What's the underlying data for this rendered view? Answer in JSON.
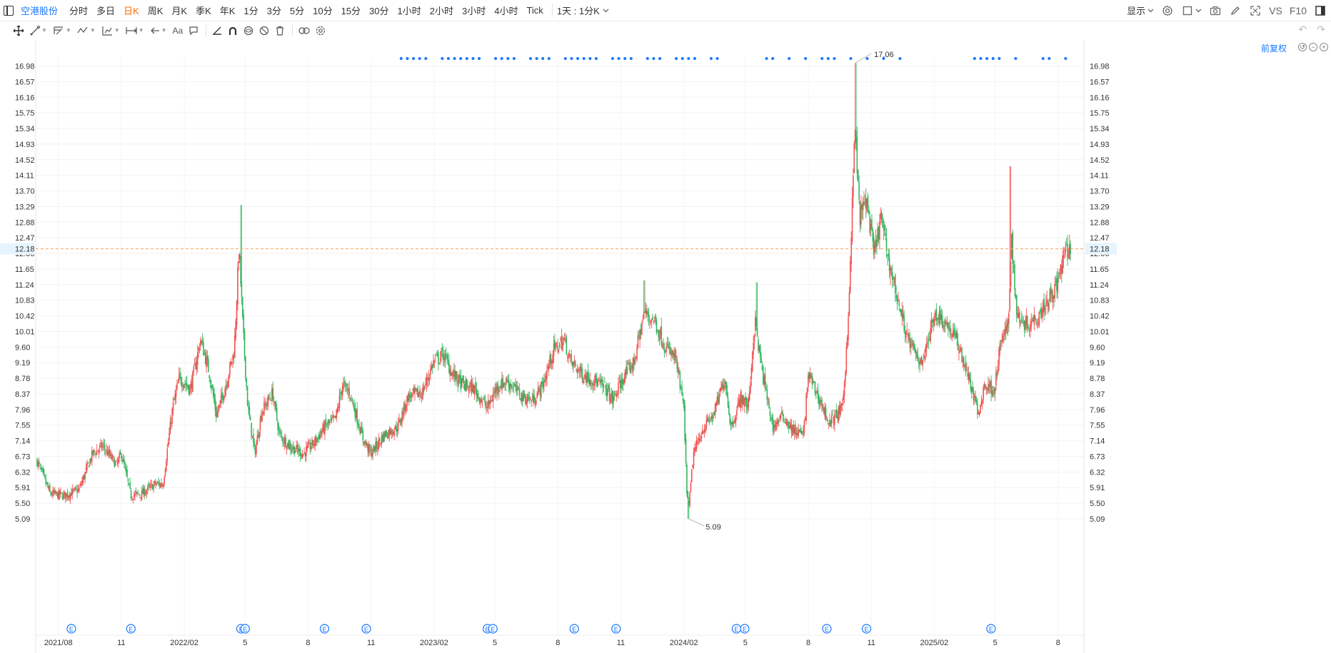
{
  "toolbar": {
    "symbol": "空港股份",
    "periods": [
      "分时",
      "多日",
      "日K",
      "周K",
      "月K",
      "季K",
      "年K",
      "1分",
      "3分",
      "5分",
      "10分",
      "15分",
      "30分",
      "1小时",
      "2小时",
      "3小时",
      "4小时",
      "Tick"
    ],
    "active_period": "日K",
    "interval_select": "1天 : 1分K",
    "display_label": "显示",
    "vs_label": "VS",
    "f10_label": "F10"
  },
  "adjust_label": "前复权",
  "current_price": "12.18",
  "colors": {
    "up": "#f14c4c",
    "down": "#2bb35a",
    "accent": "#1677ff",
    "price_line": "#f7a35c"
  },
  "icons": [
    "panel-toggle-icon",
    "gear-icon",
    "square-icon",
    "camera-icon",
    "pen-icon",
    "fullscreen-icon",
    "layout-icon",
    "move-icon",
    "line-icon",
    "trend-icon",
    "pattern-icon",
    "fib-icon",
    "measure-icon",
    "arrow-icon",
    "text-icon",
    "comment-icon",
    "angle-icon",
    "magnet-icon",
    "eye-icon",
    "hide-icon",
    "trash-icon",
    "link-icon",
    "settings-icon",
    "undo-icon",
    "redo-icon"
  ],
  "chart_data": {
    "type": "candlestick",
    "y_ticks": [
      "16.98",
      "16.57",
      "16.16",
      "15.75",
      "15.34",
      "14.93",
      "14.52",
      "14.11",
      "13.70",
      "13.29",
      "12.88",
      "12.47",
      "12.06",
      "11.65",
      "11.24",
      "10.83",
      "10.42",
      "10.01",
      "9.60",
      "9.19",
      "8.78",
      "8.37",
      "7.96",
      "7.55",
      "7.14",
      "6.73",
      "6.32",
      "5.91",
      "5.50",
      "5.09"
    ],
    "ylim": [
      4.84,
      17.46
    ],
    "x_ticks": [
      "2021/08",
      "11",
      "2022/02",
      "5",
      "8",
      "11",
      "2023/02",
      "5",
      "8",
      "11",
      "2024/02",
      "5",
      "8",
      "11",
      "2025/02",
      "5",
      "8"
    ],
    "x_range": [
      "2021/07",
      "2025/08"
    ],
    "high_annotation": {
      "label": "17.06",
      "value": 17.06,
      "date": "2024/10"
    },
    "low_annotation": {
      "label": "5.09",
      "value": 5.09,
      "date": "2024/02"
    },
    "current_price_line": 12.18,
    "close_path": [
      [
        "2021/07/01",
        6.6
      ],
      [
        "2021/07/20",
        5.75
      ],
      [
        "2021/08/10",
        5.7
      ],
      [
        "2021/08/31",
        5.85
      ],
      [
        "2021/09/20",
        6.8
      ],
      [
        "2021/10/05",
        7.0
      ],
      [
        "2021/10/25",
        6.5
      ],
      [
        "2021/11/01",
        6.8
      ],
      [
        "2021/11/15",
        5.7
      ],
      [
        "2021/12/01",
        5.75
      ],
      [
        "2021/12/20",
        6.0
      ],
      [
        "2022/01/01",
        6.0
      ],
      [
        "2022/01/05",
        6.6
      ],
      [
        "2022/01/15",
        8.0
      ],
      [
        "2022/01/25",
        8.8
      ],
      [
        "2022/02/10",
        8.5
      ],
      [
        "2022/02/25",
        9.8
      ],
      [
        "2022/03/10",
        8.9
      ],
      [
        "2022/03/20",
        7.8
      ],
      [
        "2022/04/01",
        8.5
      ],
      [
        "2022/04/15",
        9.5
      ],
      [
        "2022/04/22",
        12.2
      ],
      [
        "2022/04/28",
        10.0
      ],
      [
        "2022/05/05",
        8.0
      ],
      [
        "2022/05/15",
        6.8
      ],
      [
        "2022/05/25",
        7.9
      ],
      [
        "2022/06/10",
        8.4
      ],
      [
        "2022/06/20",
        7.3
      ],
      [
        "2022/07/05",
        7.0
      ],
      [
        "2022/07/25",
        6.8
      ],
      [
        "2022/08/10",
        7.1
      ],
      [
        "2022/08/25",
        7.5
      ],
      [
        "2022/09/10",
        7.7
      ],
      [
        "2022/09/20",
        8.6
      ],
      [
        "2022/10/01",
        8.4
      ],
      [
        "2022/10/20",
        7.2
      ],
      [
        "2022/11/01",
        6.8
      ],
      [
        "2022/11/20",
        7.3
      ],
      [
        "2022/12/10",
        7.5
      ],
      [
        "2022/12/25",
        8.3
      ],
      [
        "2023/01/15",
        8.4
      ],
      [
        "2023/01/31",
        9.2
      ],
      [
        "2023/02/15",
        9.4
      ],
      [
        "2023/02/28",
        8.9
      ],
      [
        "2023/03/15",
        8.6
      ],
      [
        "2023/04/01",
        8.5
      ],
      [
        "2023/04/20",
        8.0
      ],
      [
        "2023/05/05",
        8.6
      ],
      [
        "2023/05/20",
        8.7
      ],
      [
        "2023/06/10",
        8.3
      ],
      [
        "2023/06/25",
        8.2
      ],
      [
        "2023/07/10",
        8.6
      ],
      [
        "2023/07/25",
        9.5
      ],
      [
        "2023/08/10",
        9.8
      ],
      [
        "2023/08/20",
        9.2
      ],
      [
        "2023/09/05",
        8.9
      ],
      [
        "2023/09/25",
        8.7
      ],
      [
        "2023/10/10",
        8.5
      ],
      [
        "2023/10/20",
        8.2
      ],
      [
        "2023/11/05",
        8.8
      ],
      [
        "2023/11/20",
        9.2
      ],
      [
        "2023/12/05",
        10.5
      ],
      [
        "2023/12/20",
        10.3
      ],
      [
        "2024/01/05",
        9.6
      ],
      [
        "2024/01/20",
        9.3
      ],
      [
        "2024/02/01",
        8.0
      ],
      [
        "2024/02/05",
        6.0
      ],
      [
        "2024/02/08",
        5.3
      ],
      [
        "2024/02/15",
        6.8
      ],
      [
        "2024/03/01",
        7.5
      ],
      [
        "2024/03/15",
        7.8
      ],
      [
        "2024/04/01",
        8.8
      ],
      [
        "2024/04/10",
        7.5
      ],
      [
        "2024/04/25",
        8.3
      ],
      [
        "2024/05/05",
        8.0
      ],
      [
        "2024/05/15",
        10.3
      ],
      [
        "2024/05/25",
        9.0
      ],
      [
        "2024/06/10",
        7.5
      ],
      [
        "2024/06/25",
        7.8
      ],
      [
        "2024/07/10",
        7.4
      ],
      [
        "2024/07/25",
        7.3
      ],
      [
        "2024/08/01",
        8.9
      ],
      [
        "2024/08/20",
        8.1
      ],
      [
        "2024/09/01",
        7.6
      ],
      [
        "2024/09/20",
        8.0
      ],
      [
        "2024/09/25",
        9.3
      ],
      [
        "2024/10/01",
        11.5
      ],
      [
        "2024/10/08",
        15.5
      ],
      [
        "2024/10/15",
        13.0
      ],
      [
        "2024/10/25",
        13.5
      ],
      [
        "2024/11/05",
        12.0
      ],
      [
        "2024/11/15",
        13.0
      ],
      [
        "2024/11/25",
        12.0
      ],
      [
        "2024/12/10",
        10.8
      ],
      [
        "2024/12/25",
        9.8
      ],
      [
        "2025/01/10",
        9.2
      ],
      [
        "2025/01/20",
        9.5
      ],
      [
        "2025/02/01",
        10.5
      ],
      [
        "2025/02/15",
        10.3
      ],
      [
        "2025/03/05",
        9.8
      ],
      [
        "2025/03/20",
        9.0
      ],
      [
        "2025/04/07",
        7.8
      ],
      [
        "2025/04/15",
        8.6
      ],
      [
        "2025/04/30",
        8.5
      ],
      [
        "2025/05/10",
        9.8
      ],
      [
        "2025/05/20",
        10.1
      ],
      [
        "2025/05/25",
        12.5
      ],
      [
        "2025/06/01",
        10.5
      ],
      [
        "2025/06/15",
        10.2
      ],
      [
        "2025/07/01",
        10.4
      ],
      [
        "2025/07/15",
        10.8
      ],
      [
        "2025/07/30",
        11.2
      ],
      [
        "2025/08/10",
        12.0
      ],
      [
        "2025/08/18",
        12.18
      ]
    ],
    "spikes": [
      [
        "2022/04/25",
        13.33
      ],
      [
        "2024/10/09",
        17.06
      ],
      [
        "2025/05/23",
        14.35
      ],
      [
        "2024/05/18",
        11.3
      ],
      [
        "2023/12/05",
        11.35
      ],
      [
        "2024/02/08",
        5.09
      ]
    ],
    "earnings_marker_dates": [
      "2021/08/20",
      "2021/11/15",
      "2022/04/25",
      "2022/05/01",
      "2022/08/25",
      "2022/10/25",
      "2023/04/20",
      "2023/04/28",
      "2023/08/25",
      "2023/10/25",
      "2024/04/18",
      "2024/04/30",
      "2024/08/28",
      "2024/10/25",
      "2025/04/25"
    ],
    "earnings_marker_label": "E",
    "event_dot_ranges": [
      [
        "2022/12/15",
        "2024/04/01"
      ],
      [
        "2024/06/01",
        "2024/12/30"
      ],
      [
        "2025/04/01",
        "2025/06/10"
      ],
      [
        "2025/07/10",
        "2025/08/15"
      ]
    ]
  }
}
